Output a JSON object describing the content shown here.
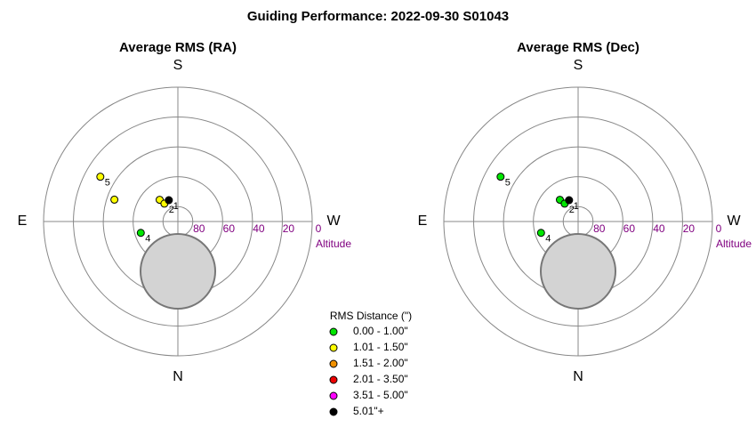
{
  "title": "Guiding Performance: 2022-09-30 S01043",
  "legend": {
    "title": "RMS Distance (\")",
    "items": [
      {
        "label": "0.00 - 1.00\"",
        "color": "#00e600"
      },
      {
        "label": "1.01 - 1.50\"",
        "color": "#ffff00"
      },
      {
        "label": "1.51 - 2.00\"",
        "color": "#f09000"
      },
      {
        "label": "2.01 - 3.50\"",
        "color": "#ee0000"
      },
      {
        "label": "3.51 - 5.00\"",
        "color": "#ff00ff"
      },
      {
        "label": "5.01\"+",
        "color": "#000000"
      }
    ]
  },
  "chart_data": [
    {
      "type": "polar",
      "title": "Average RMS (RA)",
      "compass": [
        "N",
        "E",
        "S",
        "W"
      ],
      "rlim": [
        90,
        0
      ],
      "rticks": [
        80,
        60,
        40,
        20,
        0
      ],
      "rlabel": "Altitude",
      "azimuth": [
        120,
        109,
        140,
        143,
        157,
        73
      ],
      "altitude": [
        30,
        45,
        71,
        75,
        74.5,
        64
      ],
      "labels": [
        "5",
        null,
        null,
        "2",
        "1",
        "4"
      ],
      "colors": [
        "#ffff00",
        "#ffff00",
        "#ffff00",
        "#ffff00",
        "#000000",
        "#00e600"
      ]
    },
    {
      "type": "polar",
      "title": "Average RMS (Dec)",
      "compass": [
        "N",
        "E",
        "S",
        "W"
      ],
      "rlim": [
        90,
        0
      ],
      "rticks": [
        80,
        60,
        40,
        20,
        0
      ],
      "rlabel": "Altitude",
      "azimuth": [
        120,
        140,
        143,
        157,
        73
      ],
      "altitude": [
        30,
        71,
        75,
        74.5,
        64
      ],
      "labels": [
        "5",
        null,
        "2",
        "1",
        "4"
      ],
      "colors": [
        "#00e600",
        "#00e600",
        "#00e600",
        "#000000",
        "#00e600"
      ]
    }
  ]
}
